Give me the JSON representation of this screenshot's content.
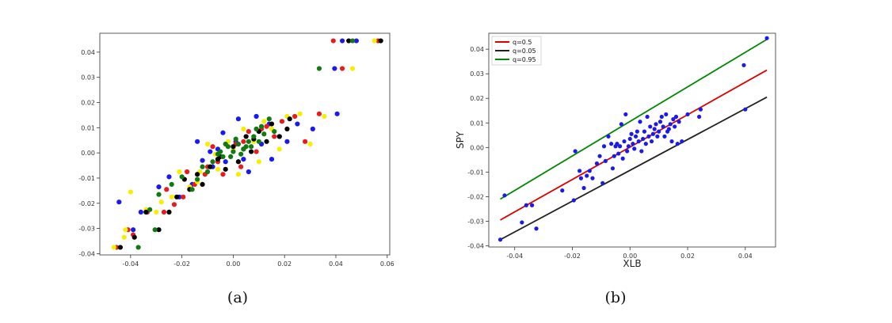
{
  "chart_data": [
    {
      "caption": "(a)",
      "type": "scatter",
      "xlim": [
        -0.052,
        0.061
      ],
      "ylim": [
        -0.0405,
        0.0475
      ],
      "xticks": [
        "-0.04",
        "-0.02",
        "0.00",
        "0.02",
        "0.04",
        "0.06"
      ],
      "yticks": [
        "-0.04",
        "-0.03",
        "-0.02",
        "-0.01",
        "0.00",
        "0.01",
        "0.02",
        "0.03",
        "0.04"
      ],
      "xlabel": "",
      "ylabel": "",
      "colors": {
        "blue": "#1a1aee",
        "red": "#e81c1c",
        "yellow": "#f5f000",
        "black": "#000000",
        "green": "#127a12"
      },
      "series": [
        {
          "color": "blue",
          "points": [
            [
              -0.0445,
              -0.0195
            ],
            [
              -0.036,
              -0.0235
            ],
            [
              -0.039,
              -0.0305
            ],
            [
              -0.021,
              -0.0175
            ],
            [
              -0.016,
              -0.0125
            ],
            [
              -0.012,
              -0.003
            ],
            [
              -0.009,
              0.0005
            ],
            [
              -0.004,
              0.008
            ],
            [
              0.002,
              0.0135
            ],
            [
              0.011,
              0.0035
            ],
            [
              0.018,
              0.0065
            ],
            [
              0.025,
              0.0115
            ],
            [
              0.0395,
              0.0335
            ],
            [
              0.0425,
              0.0445
            ],
            [
              0.048,
              0.0445
            ],
            [
              0.0405,
              0.0155
            ],
            [
              0.031,
              0.0095
            ],
            [
              0.015,
              -0.0025
            ],
            [
              0.006,
              -0.0075
            ],
            [
              -0.008,
              -0.0055
            ],
            [
              -0.014,
              0.0045
            ],
            [
              -0.025,
              -0.0095
            ],
            [
              -0.029,
              -0.0135
            ],
            [
              0.009,
              0.0145
            ],
            [
              0.001,
              0.0045
            ],
            [
              0.014,
              0.0115
            ],
            [
              -0.006,
              0.0015
            ],
            [
              0.004,
              -0.0025
            ],
            [
              0.021,
              0.0045
            ],
            [
              -0.003,
              -0.0035
            ]
          ]
        },
        {
          "color": "red",
          "points": [
            [
              -0.0455,
              -0.0375
            ],
            [
              -0.039,
              -0.0325
            ],
            [
              -0.041,
              -0.0305
            ],
            [
              -0.0335,
              -0.0235
            ],
            [
              -0.027,
              -0.0235
            ],
            [
              -0.023,
              -0.0205
            ],
            [
              -0.0195,
              -0.0175
            ],
            [
              -0.015,
              -0.0125
            ],
            [
              -0.011,
              -0.0085
            ],
            [
              -0.006,
              -0.0035
            ],
            [
              0.001,
              0.0035
            ],
            [
              0.006,
              0.0085
            ],
            [
              0.013,
              0.0105
            ],
            [
              0.019,
              0.0125
            ],
            [
              0.0335,
              0.0155
            ],
            [
              0.0425,
              0.0335
            ],
            [
              0.039,
              0.0445
            ],
            [
              0.0565,
              0.0445
            ],
            [
              0.024,
              0.0145
            ],
            [
              0.016,
              0.0065
            ],
            [
              0.009,
              0.0005
            ],
            [
              0.003,
              -0.0055
            ],
            [
              -0.004,
              -0.0085
            ],
            [
              -0.01,
              -0.0055
            ],
            [
              -0.018,
              -0.0075
            ],
            [
              -0.026,
              -0.0145
            ],
            [
              0.028,
              0.0045
            ],
            [
              -0.008,
              0.0025
            ],
            [
              0.011,
              0.0095
            ],
            [
              0.004,
              0.0045
            ]
          ]
        },
        {
          "color": "yellow",
          "points": [
            [
              -0.0465,
              -0.0375
            ],
            [
              -0.0425,
              -0.0335
            ],
            [
              -0.042,
              -0.0305
            ],
            [
              -0.04,
              -0.0155
            ],
            [
              -0.034,
              -0.0225
            ],
            [
              -0.03,
              -0.0235
            ],
            [
              -0.024,
              -0.0175
            ],
            [
              -0.017,
              -0.0135
            ],
            [
              -0.013,
              -0.0075
            ],
            [
              -0.007,
              -0.0005
            ],
            [
              -0.002,
              0.0045
            ],
            [
              0.004,
              0.0095
            ],
            [
              0.012,
              0.0125
            ],
            [
              0.021,
              0.0145
            ],
            [
              0.0355,
              0.0145
            ],
            [
              0.0465,
              0.0335
            ],
            [
              0.055,
              0.0445
            ],
            [
              0.03,
              0.0035
            ],
            [
              0.018,
              0.0015
            ],
            [
              0.01,
              -0.0035
            ],
            [
              0.002,
              -0.0085
            ],
            [
              -0.006,
              -0.0065
            ],
            [
              -0.014,
              -0.0115
            ],
            [
              -0.021,
              -0.0075
            ],
            [
              -0.028,
              -0.0195
            ],
            [
              0.026,
              0.0155
            ],
            [
              0.008,
              0.0045
            ],
            [
              -0.01,
              0.0035
            ],
            [
              0.015,
              0.0095
            ],
            [
              0.0,
              0.0015
            ]
          ]
        },
        {
          "color": "black",
          "points": [
            [
              -0.044,
              -0.0375
            ],
            [
              -0.0385,
              -0.0335
            ],
            [
              -0.034,
              -0.0235
            ],
            [
              -0.029,
              -0.0305
            ],
            [
              -0.025,
              -0.0235
            ],
            [
              -0.022,
              -0.0175
            ],
            [
              -0.019,
              -0.0105
            ],
            [
              -0.014,
              -0.0085
            ],
            [
              -0.009,
              -0.0055
            ],
            [
              -0.005,
              -0.0015
            ],
            [
              0.0,
              0.0025
            ],
            [
              0.005,
              0.0065
            ],
            [
              0.01,
              0.0085
            ],
            [
              0.015,
              0.0115
            ],
            [
              0.022,
              0.0135
            ],
            [
              0.0575,
              0.0445
            ],
            [
              0.045,
              0.0445
            ],
            [
              0.021,
              0.0095
            ],
            [
              0.013,
              0.0045
            ],
            [
              0.007,
              0.0005
            ],
            [
              0.002,
              -0.0035
            ],
            [
              -0.003,
              -0.0065
            ],
            [
              -0.012,
              -0.0125
            ],
            [
              -0.017,
              -0.0145
            ],
            [
              0.018,
              0.0065
            ],
            [
              0.004,
              0.0015
            ],
            [
              -0.006,
              -0.0025
            ],
            [
              0.008,
              0.0055
            ]
          ]
        },
        {
          "color": "green",
          "points": [
            [
              -0.037,
              -0.0375
            ],
            [
              -0.0305,
              -0.0305
            ],
            [
              -0.0325,
              -0.0225
            ],
            [
              -0.029,
              -0.0165
            ],
            [
              -0.024,
              -0.0125
            ],
            [
              -0.02,
              -0.0095
            ],
            [
              -0.016,
              -0.0145
            ],
            [
              -0.012,
              -0.0055
            ],
            [
              -0.008,
              -0.0035
            ],
            [
              -0.005,
              0.0005
            ],
            [
              -0.002,
              0.0025
            ],
            [
              0.0,
              0.0005
            ],
            [
              0.002,
              0.0035
            ],
            [
              0.004,
              0.0015
            ],
            [
              0.006,
              0.0045
            ],
            [
              0.008,
              0.0065
            ],
            [
              0.011,
              0.0105
            ],
            [
              0.014,
              0.0135
            ],
            [
              0.016,
              0.0085
            ],
            [
              0.0335,
              0.0335
            ],
            [
              0.0465,
              0.0445
            ],
            [
              -0.001,
              -0.0015
            ],
            [
              0.003,
              -0.0005
            ],
            [
              0.001,
              0.0055
            ],
            [
              -0.003,
              0.0035
            ],
            [
              0.005,
              0.0025
            ],
            [
              0.007,
              0.0025
            ],
            [
              -0.004,
              -0.0015
            ],
            [
              0.01,
              0.0045
            ],
            [
              -0.01,
              -0.0075
            ],
            [
              -0.014,
              -0.0105
            ],
            [
              0.012,
              0.0075
            ],
            [
              0.009,
              0.0095
            ],
            [
              -0.006,
              -0.0005
            ]
          ]
        }
      ]
    },
    {
      "caption": "(b)",
      "type": "scatter",
      "xlabel": "XLB",
      "ylabel": "SPY",
      "xlim": [
        -0.049,
        0.0505
      ],
      "ylim": [
        -0.0405,
        0.0465
      ],
      "xticks": [
        "-0.04",
        "-0.02",
        "0.00",
        "0.02",
        "0.04"
      ],
      "yticks": [
        "-0.04",
        "-0.03",
        "-0.02",
        "-0.01",
        "0.00",
        "0.01",
        "0.02",
        "0.03",
        "0.04"
      ],
      "legend": {
        "placement": "top-left",
        "entries": [
          {
            "label": "q=0.5",
            "color": "#e00000"
          },
          {
            "label": "q=0.05",
            "color": "#222222"
          },
          {
            "label": "q=0.95",
            "color": "#008a00"
          }
        ]
      },
      "lines": [
        {
          "label": "q=0.5",
          "color": "#e00000",
          "x": [
            -0.045,
            0.0475
          ],
          "y": [
            -0.0295,
            0.0315
          ]
        },
        {
          "label": "q=0.05",
          "color": "#222222",
          "x": [
            -0.045,
            0.0475
          ],
          "y": [
            -0.0375,
            0.0205
          ]
        },
        {
          "label": "q=0.95",
          "color": "#008a00",
          "x": [
            -0.045,
            0.0475
          ],
          "y": [
            -0.021,
            0.044
          ]
        }
      ],
      "points": {
        "color": "#1a1aee",
        "values": [
          [
            -0.045,
            -0.0375
          ],
          [
            -0.0435,
            -0.0195
          ],
          [
            -0.0375,
            -0.0305
          ],
          [
            -0.036,
            -0.0235
          ],
          [
            -0.034,
            -0.0235
          ],
          [
            -0.0325,
            -0.033
          ],
          [
            -0.0235,
            -0.0175
          ],
          [
            -0.0195,
            -0.0215
          ],
          [
            -0.019,
            -0.0015
          ],
          [
            -0.0175,
            -0.0095
          ],
          [
            -0.017,
            -0.0125
          ],
          [
            -0.016,
            -0.0165
          ],
          [
            -0.015,
            -0.0115
          ],
          [
            -0.014,
            -0.0095
          ],
          [
            -0.013,
            -0.0125
          ],
          [
            -0.0115,
            -0.0065
          ],
          [
            -0.0105,
            -0.0035
          ],
          [
            -0.0095,
            -0.0145
          ],
          [
            -0.009,
            0.0005
          ],
          [
            -0.0085,
            -0.0055
          ],
          [
            -0.0075,
            0.0045
          ],
          [
            -0.0065,
            0.0015
          ],
          [
            -0.006,
            -0.0085
          ],
          [
            -0.0055,
            -0.0035
          ],
          [
            -0.005,
            0.0005
          ],
          [
            -0.0045,
            0.0015
          ],
          [
            -0.004,
            -0.0025
          ],
          [
            -0.0035,
            0.0005
          ],
          [
            -0.003,
            0.0095
          ],
          [
            -0.0025,
            -0.0045
          ],
          [
            -0.002,
            0.0025
          ],
          [
            -0.0015,
            0.0135
          ],
          [
            -0.001,
            -0.0015
          ],
          [
            -0.0005,
            0.0005
          ],
          [
            0.0,
            0.0035
          ],
          [
            0.0005,
            0.0055
          ],
          [
            0.001,
            0.0015
          ],
          [
            0.0015,
            -0.0005
          ],
          [
            0.002,
            0.0045
          ],
          [
            0.0025,
            0.0065
          ],
          [
            0.003,
            0.0025
          ],
          [
            0.0035,
            0.0105
          ],
          [
            0.004,
            -0.0015
          ],
          [
            0.0045,
            0.0035
          ],
          [
            0.005,
            0.0065
          ],
          [
            0.0055,
            0.0015
          ],
          [
            0.006,
            0.0125
          ],
          [
            0.0065,
            0.0045
          ],
          [
            0.007,
            0.0085
          ],
          [
            0.0075,
            0.0025
          ],
          [
            0.008,
            0.0055
          ],
          [
            0.0085,
            0.0075
          ],
          [
            0.009,
            0.0095
          ],
          [
            0.0095,
            0.0045
          ],
          [
            0.01,
            0.0065
          ],
          [
            0.0105,
            0.0105
          ],
          [
            0.011,
            0.0125
          ],
          [
            0.0115,
            0.0085
          ],
          [
            0.012,
            0.0045
          ],
          [
            0.0125,
            0.0135
          ],
          [
            0.013,
            0.0065
          ],
          [
            0.0135,
            0.0075
          ],
          [
            0.014,
            0.0095
          ],
          [
            0.0145,
            0.0025
          ],
          [
            0.015,
            0.0115
          ],
          [
            0.0155,
            0.0085
          ],
          [
            0.016,
            0.0125
          ],
          [
            0.0165,
            0.0015
          ],
          [
            0.017,
            0.0105
          ],
          [
            0.018,
            0.0025
          ],
          [
            0.02,
            0.0135
          ],
          [
            0.024,
            0.0125
          ],
          [
            0.0245,
            0.0155
          ],
          [
            0.0395,
            0.0335
          ],
          [
            0.04,
            0.0155
          ],
          [
            0.0475,
            0.0445
          ]
        ]
      }
    }
  ]
}
